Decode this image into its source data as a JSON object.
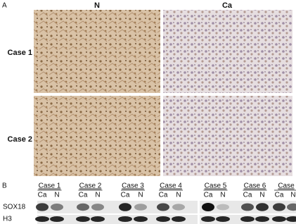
{
  "panel_a": {
    "label": "A",
    "columns": [
      "N",
      "Ca"
    ],
    "rows": [
      "Case 1",
      "Case 2"
    ]
  },
  "panel_b": {
    "label": "B",
    "cases": [
      {
        "name": "Case 1",
        "lanes": [
          "Ca",
          "N"
        ]
      },
      {
        "name": "Case 2",
        "lanes": [
          "Ca",
          "N"
        ]
      },
      {
        "name": "Case 3",
        "lanes": [
          "Ca",
          "N"
        ]
      },
      {
        "name": "Case 4",
        "lanes": [
          "Ca",
          "N"
        ]
      },
      {
        "name": "Case 5",
        "lanes": [
          "Ca",
          "N"
        ]
      },
      {
        "name": "Case 6",
        "lanes": [
          "Ca",
          "N"
        ]
      },
      {
        "name": "Case",
        "lanes": [
          "Ca",
          "N"
        ]
      }
    ],
    "rows": [
      "SOX18",
      "H3"
    ]
  }
}
